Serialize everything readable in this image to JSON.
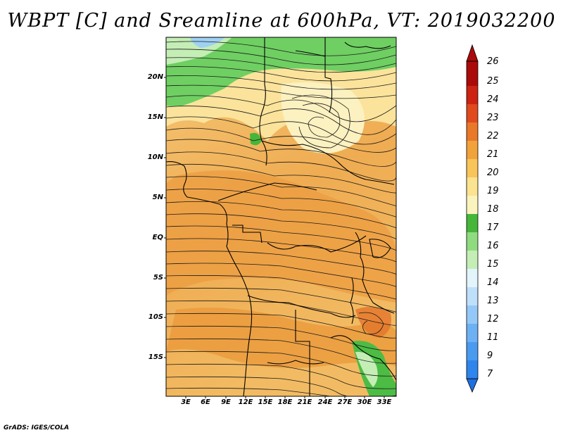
{
  "title": "WBPT [C] and Sreamline at 600hPa, VT: 2019032200",
  "credit": "GrADS: IGES/COLA",
  "map": {
    "lat_labels": [
      "20N",
      "15N",
      "10N",
      "5N",
      "EQ",
      "5S",
      "10S",
      "15S"
    ],
    "lon_labels": [
      "3E",
      "6E",
      "9E",
      "12E",
      "15E",
      "18E",
      "21E",
      "24E",
      "27E",
      "30E",
      "33E"
    ]
  },
  "colorbar": {
    "labels": [
      "7",
      "9",
      "11",
      "12",
      "13",
      "14",
      "15",
      "16",
      "17",
      "18",
      "19",
      "20",
      "21",
      "22",
      "23",
      "24",
      "25",
      "26"
    ],
    "colors": [
      "#1e6fe0",
      "#2f85ec",
      "#4a9bf0",
      "#6db1f5",
      "#94c8f8",
      "#bfe0fb",
      "#e3f4fb",
      "#c4eeb6",
      "#8fdc80",
      "#46b63a",
      "#fbf3bd",
      "#fbe38f",
      "#f9c45a",
      "#f1a23a",
      "#e9782a",
      "#e04a1d",
      "#cc2313",
      "#aa0a0a"
    ]
  }
}
